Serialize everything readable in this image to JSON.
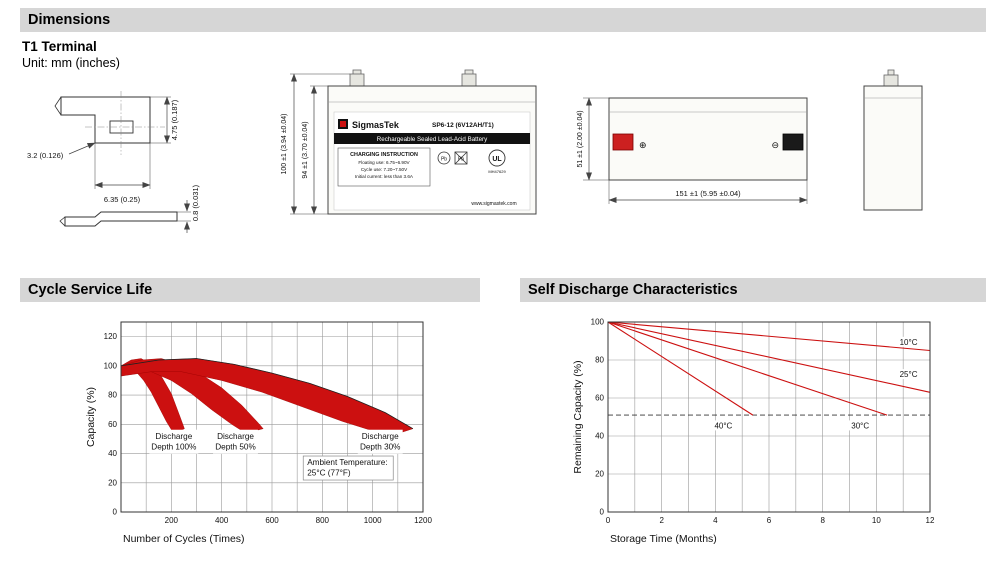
{
  "sections": {
    "dimensions_title": "Dimensions",
    "cycle_title": "Cycle Service Life",
    "self_discharge_title": "Self Discharge Characteristics"
  },
  "dimensions": {
    "terminal_type": "T1 Terminal",
    "unit_note": "Unit: mm (inches)",
    "terminal_detail": {
      "dim_blade_width": "3.2 (0.126)",
      "dim_blade_length": "6.35 (0.25)",
      "dim_height": "4.75 (0.187)",
      "dim_thickness": "0.8 (0.031)"
    },
    "front_view": {
      "dim_total_height": "100 ±1 (3.94 ±0.04)",
      "dim_case_height": "94 ±1 (3.70 ±0.04)",
      "brand": "SigmasTek",
      "model": "SP6-12 (6V12AH/T1)",
      "product_line": "Rechargeable Sealed Lead-Acid Battery",
      "charging_title": "CHARGING INSTRUCTION",
      "charging_lines": [
        "Floating use: 6.75~6.90V",
        "Cycle use: 7.20~7.50V",
        "Initial current: less than 3.6A"
      ],
      "pb_label": "Pb",
      "ul_label": "UL",
      "ul_code": "MH47629",
      "website": "www.sigmastek.com"
    },
    "side_view": {
      "dim_width": "51 ±1 (2.00 ±0.04)",
      "dim_length": "151 ±1 (5.95 ±0.04)",
      "positive_symbol": "⊕",
      "negative_symbol": "⊖"
    }
  },
  "chart_data": [
    {
      "type": "area",
      "title": "Cycle Service Life",
      "xlabel": "Number of Cycles (Times)",
      "ylabel": "Capacity (%)",
      "xlim": [
        0,
        1200
      ],
      "ylim": [
        0,
        130
      ],
      "xticks": [
        200,
        400,
        600,
        800,
        1000,
        1200
      ],
      "yticks": [
        0,
        20,
        40,
        60,
        80,
        100,
        120
      ],
      "xgrid_step": 100,
      "ygrid_step": 20,
      "band_color": "#cc1010",
      "bands": [
        {
          "name": "Discharge Depth 100%",
          "top": [
            [
              0,
              100
            ],
            [
              40,
              104
            ],
            [
              80,
              105
            ],
            [
              120,
              101
            ],
            [
              160,
              93
            ],
            [
              200,
              81
            ],
            [
              235,
              65
            ],
            [
              252,
              57
            ]
          ],
          "bottom": [
            [
              0,
              93
            ],
            [
              30,
              96
            ],
            [
              60,
              96
            ],
            [
              90,
              90
            ],
            [
              120,
              82
            ],
            [
              150,
              72
            ],
            [
              180,
              62
            ],
            [
              205,
              55
            ],
            [
              215,
              54
            ]
          ]
        },
        {
          "name": "Discharge Depth 50%",
          "top": [
            [
              0,
              100
            ],
            [
              80,
              104
            ],
            [
              160,
              105
            ],
            [
              240,
              101
            ],
            [
              320,
              94
            ],
            [
              400,
              85
            ],
            [
              480,
              73
            ],
            [
              545,
              61
            ],
            [
              565,
              57
            ]
          ],
          "bottom": [
            [
              0,
              93
            ],
            [
              60,
              96
            ],
            [
              120,
              96
            ],
            [
              200,
              90
            ],
            [
              280,
              81
            ],
            [
              360,
              70
            ],
            [
              440,
              60
            ],
            [
              495,
              54
            ]
          ]
        },
        {
          "name": "Discharge Depth 30%",
          "outline": true,
          "top": [
            [
              0,
              100
            ],
            [
              150,
              104
            ],
            [
              300,
              105
            ],
            [
              450,
              101
            ],
            [
              600,
              95
            ],
            [
              750,
              88
            ],
            [
              900,
              79
            ],
            [
              1050,
              68
            ],
            [
              1160,
              57
            ]
          ],
          "bottom": [
            [
              0,
              93
            ],
            [
              120,
              96
            ],
            [
              240,
              96
            ],
            [
              400,
              90
            ],
            [
              560,
              82
            ],
            [
              720,
              72
            ],
            [
              880,
              62
            ],
            [
              1010,
              55
            ],
            [
              1070,
              52
            ]
          ]
        }
      ],
      "annotations": [
        {
          "lines": [
            "Discharge",
            "Depth 100%"
          ],
          "x": 210,
          "y": 50,
          "box": true
        },
        {
          "lines": [
            "Discharge",
            "Depth 50%"
          ],
          "x": 455,
          "y": 50,
          "box": true
        },
        {
          "lines": [
            "Discharge",
            "Depth 30%"
          ],
          "x": 1030,
          "y": 50,
          "box": true
        },
        {
          "lines": [
            "Ambient Temperature:",
            "25°C (77°F)"
          ],
          "x": 740,
          "y": 32,
          "box": true,
          "border": true,
          "align": "left"
        }
      ]
    },
    {
      "type": "line",
      "title": "Self Discharge Characteristics",
      "xlabel": "Storage Time (Months)",
      "ylabel": "Remaining Capacity (%)",
      "xlim": [
        0,
        12
      ],
      "ylim": [
        0,
        100
      ],
      "xticks": [
        0,
        2,
        4,
        6,
        8,
        10,
        12
      ],
      "yticks": [
        0,
        20,
        40,
        60,
        80,
        100
      ],
      "xgrid_step": 1,
      "ygrid_step": 20,
      "line_color": "#cc1010",
      "series": [
        {
          "name": "10°C",
          "points": [
            [
              0,
              100
            ],
            [
              12,
              85
            ]
          ]
        },
        {
          "name": "25°C",
          "points": [
            [
              0,
              100
            ],
            [
              12,
              63
            ]
          ]
        },
        {
          "name": "30°C",
          "points": [
            [
              0,
              100
            ],
            [
              10.4,
              51
            ]
          ]
        },
        {
          "name": "40°C",
          "points": [
            [
              0,
              100
            ],
            [
              5.4,
              51
            ]
          ]
        }
      ],
      "dashed_line": {
        "y": 51,
        "x0": 0,
        "x1": 12
      },
      "labels": [
        {
          "text": "10°C",
          "x": 11.2,
          "y": 88
        },
        {
          "text": "25°C",
          "x": 11.2,
          "y": 71
        },
        {
          "text": "30°C",
          "x": 9.4,
          "y": 44
        },
        {
          "text": "40°C",
          "x": 4.3,
          "y": 44
        }
      ]
    }
  ]
}
